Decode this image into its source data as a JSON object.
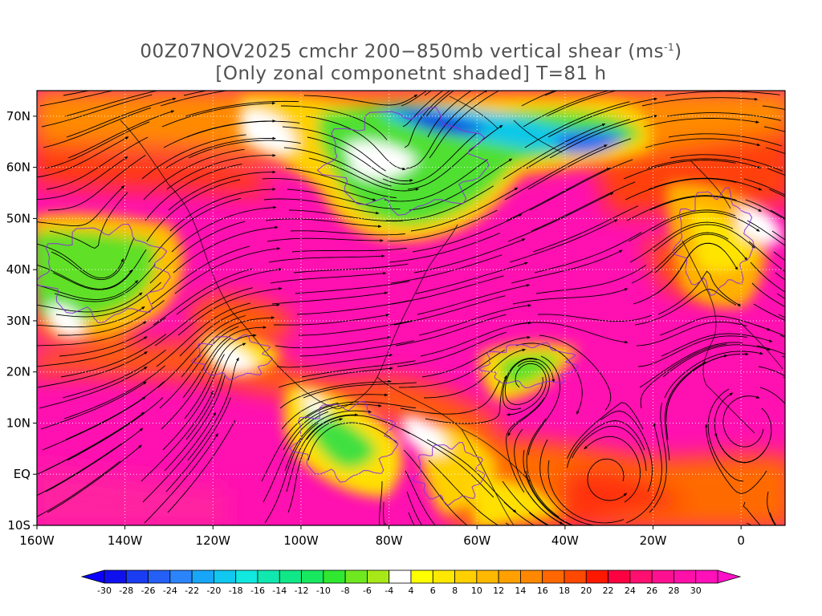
{
  "title": {
    "line1": "00Z07NOV2025 cmchr 200−850mb vertical shear (ms",
    "line1_sup": "-1",
    "line1_end": ")",
    "line2": "[Only zonal componetnt shaded] T=81 h"
  },
  "map": {
    "lon_range": [
      -160,
      10
    ],
    "lat_range": [
      -10,
      75
    ],
    "x_ticks": [
      {
        "lon": -160,
        "label": "160W"
      },
      {
        "lon": -140,
        "label": "140W"
      },
      {
        "lon": -120,
        "label": "120W"
      },
      {
        "lon": -100,
        "label": "100W"
      },
      {
        "lon": -80,
        "label": "80W"
      },
      {
        "lon": -60,
        "label": "60W"
      },
      {
        "lon": -40,
        "label": "40W"
      },
      {
        "lon": -20,
        "label": "20W"
      },
      {
        "lon": 0,
        "label": "0"
      }
    ],
    "y_ticks": [
      {
        "lat": 70,
        "label": "70N"
      },
      {
        "lat": 60,
        "label": "60N"
      },
      {
        "lat": 50,
        "label": "50N"
      },
      {
        "lat": 40,
        "label": "40N"
      },
      {
        "lat": 30,
        "label": "30N"
      },
      {
        "lat": 20,
        "label": "20N"
      },
      {
        "lat": 10,
        "label": "10N"
      },
      {
        "lat": 0,
        "label": "EQ"
      },
      {
        "lat": -10,
        "label": "10S"
      }
    ],
    "gridlines": "dotted"
  },
  "colorbar": {
    "labels": [
      "-30",
      "-28",
      "-26",
      "-24",
      "-22",
      "-20",
      "-18",
      "-16",
      "-14",
      "-12",
      "-10",
      "-8",
      "-6",
      "-4",
      "4",
      "6",
      "8",
      "10",
      "12",
      "14",
      "16",
      "18",
      "20",
      "22",
      "24",
      "26",
      "28",
      "30"
    ],
    "colors": [
      "#1010ee",
      "#1a3cf2",
      "#2460f6",
      "#2c84fa",
      "#18a6f8",
      "#10c8f0",
      "#10e8e0",
      "#10e8b0",
      "#10e888",
      "#18e860",
      "#30e830",
      "#70e820",
      "#a8e818",
      "#ffffff",
      "#ffff00",
      "#ffe800",
      "#ffd000",
      "#ffb800",
      "#ffa000",
      "#ff8800",
      "#ff6800",
      "#ff4800",
      "#ff1800",
      "#ff0040",
      "#ff1070",
      "#ff1090",
      "#ff10a8",
      "#ff10b8"
    ],
    "low_color": "#0a00ff",
    "high_color": "#ff10c8"
  }
}
